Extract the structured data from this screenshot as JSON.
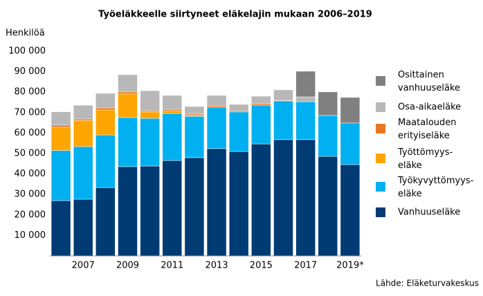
{
  "chart_data": {
    "type": "stacked_bar",
    "title": "Työeläkkeelle siirtyneet eläkelajin mukaan 2006–2019",
    "y_label": "Henkilöä",
    "source": "Lähde: Eläketurvakeskus",
    "categories": [
      null,
      "2007",
      null,
      "2009",
      null,
      "2011",
      null,
      "2013",
      null,
      "2015",
      null,
      "2017",
      null,
      "2019*"
    ],
    "series": [
      {
        "name": "Vanhuuseläke",
        "color": "#003b73",
        "values": [
          27000,
          27700,
          33400,
          43600,
          43900,
          46600,
          48000,
          52400,
          51000,
          54700,
          56800,
          56800,
          48600,
          44600
        ]
      },
      {
        "name": "Työkyvyttömyys- eläke",
        "color": "#00b0f0",
        "values": [
          24500,
          25700,
          25700,
          24000,
          23300,
          23000,
          20200,
          20200,
          19300,
          18900,
          18900,
          18500,
          20000,
          20300
        ]
      },
      {
        "name": "Työttömyys- eläke",
        "color": "#ffa500",
        "values": [
          11400,
          12800,
          12200,
          11500,
          3100,
          1300,
          400,
          0,
          0,
          0,
          0,
          0,
          0,
          0
        ]
      },
      {
        "name": "Maatalouden erityiseläke",
        "color": "#e87722",
        "values": [
          1000,
          700,
          1000,
          1000,
          600,
          700,
          700,
          700,
          600,
          700,
          300,
          0,
          0,
          0
        ]
      },
      {
        "name": "Osa-aikaeläke",
        "color": "#b8b8b8",
        "values": [
          6500,
          6700,
          7100,
          8400,
          9800,
          6800,
          3700,
          5100,
          3100,
          3700,
          5100,
          2400,
          0,
          0
        ]
      },
      {
        "name": "Osittainen vanhuuseläke",
        "color": "#808080",
        "values": [
          0,
          0,
          0,
          0,
          0,
          0,
          0,
          0,
          0,
          0,
          0,
          12500,
          11500,
          12500
        ]
      }
    ],
    "ylim": [
      0,
      100000
    ],
    "yticks": [
      {
        "value": 10000,
        "label": "10 000"
      },
      {
        "value": 20000,
        "label": "20 000"
      },
      {
        "value": 30000,
        "label": "30 000"
      },
      {
        "value": 40000,
        "label": "40 000"
      },
      {
        "value": 50000,
        "label": "50 000"
      },
      {
        "value": 60000,
        "label": "60 000"
      },
      {
        "value": 70000,
        "label": "70 000"
      },
      {
        "value": 80000,
        "label": "80 000"
      },
      {
        "value": 90000,
        "label": "90 000"
      },
      {
        "value": 100000,
        "label": "100 000"
      }
    ],
    "grid": false,
    "legend": "right"
  }
}
